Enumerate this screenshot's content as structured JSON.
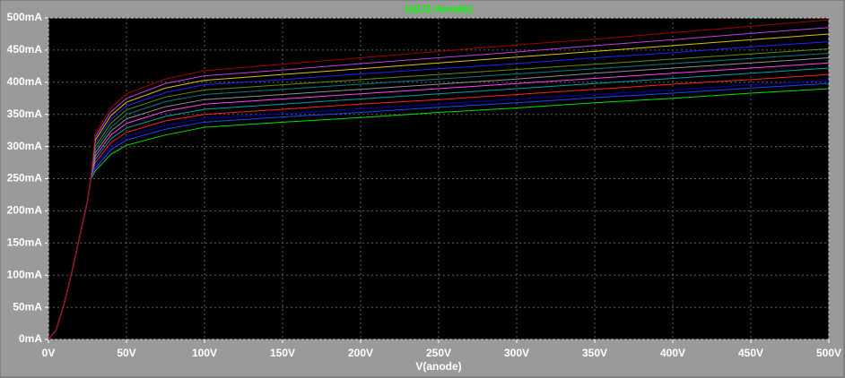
{
  "chart_data": {
    "type": "line",
    "title": "Ix(U1:Anode)",
    "title_color": "#00ff00",
    "x_label": "V(anode)",
    "x": [
      0,
      5,
      10,
      15,
      20,
      25,
      27,
      30,
      40,
      50,
      75,
      100,
      150,
      200,
      250,
      300,
      350,
      400,
      450,
      500
    ],
    "xlim": [
      0,
      500
    ],
    "xticks": [
      {
        "value": 0,
        "label": "0V"
      },
      {
        "value": 50,
        "label": "50V"
      },
      {
        "value": 100,
        "label": "100V"
      },
      {
        "value": 150,
        "label": "150V"
      },
      {
        "value": 200,
        "label": "200V"
      },
      {
        "value": 250,
        "label": "250V"
      },
      {
        "value": 300,
        "label": "300V"
      },
      {
        "value": 350,
        "label": "350V"
      },
      {
        "value": 400,
        "label": "400V"
      },
      {
        "value": 450,
        "label": "450V"
      },
      {
        "value": 500,
        "label": "500V"
      }
    ],
    "ylim": [
      0,
      500
    ],
    "yticks": [
      {
        "value": 0,
        "label": "0mA"
      },
      {
        "value": 50,
        "label": "50mA"
      },
      {
        "value": 100,
        "label": "100mA"
      },
      {
        "value": 150,
        "label": "150mA"
      },
      {
        "value": 200,
        "label": "200mA"
      },
      {
        "value": 250,
        "label": "250mA"
      },
      {
        "value": 300,
        "label": "300mA"
      },
      {
        "value": 350,
        "label": "350mA"
      },
      {
        "value": 400,
        "label": "400mA"
      },
      {
        "value": 450,
        "label": "450mA"
      },
      {
        "value": 500,
        "label": "500mA"
      }
    ],
    "grid": true,
    "series": [
      {
        "color": "#00e000",
        "values": [
          0,
          15,
          55,
          105,
          160,
          215,
          248,
          262,
          288,
          302,
          318,
          330,
          338,
          345,
          353,
          360,
          368,
          375,
          383,
          390
        ]
      },
      {
        "color": "#2040ff",
        "values": [
          0,
          15,
          55,
          105,
          160,
          215,
          248,
          266,
          295,
          310,
          327,
          338,
          346,
          353,
          361,
          368,
          376,
          383,
          391,
          398
        ]
      },
      {
        "color": "#0000c0",
        "values": [
          0,
          15,
          55,
          105,
          160,
          215,
          248,
          270,
          300,
          316,
          333,
          344,
          351,
          359,
          366,
          374,
          381,
          388,
          396,
          403
        ]
      },
      {
        "color": "#ff2020",
        "values": [
          0,
          15,
          55,
          105,
          160,
          215,
          248,
          275,
          306,
          322,
          340,
          350,
          358,
          366,
          373,
          381,
          389,
          397,
          404,
          412
        ]
      },
      {
        "color": "#00a0a0",
        "values": [
          0,
          15,
          55,
          105,
          160,
          215,
          248,
          280,
          312,
          329,
          347,
          358,
          366,
          374,
          382,
          390,
          398,
          406,
          414,
          422
        ]
      },
      {
        "color": "#ff40ff",
        "values": [
          0,
          15,
          55,
          105,
          160,
          215,
          248,
          285,
          318,
          336,
          355,
          366,
          374,
          382,
          390,
          398,
          406,
          414,
          422,
          430
        ]
      },
      {
        "color": "#909090",
        "values": [
          0,
          15,
          55,
          105,
          160,
          215,
          248,
          290,
          324,
          343,
          362,
          373,
          381,
          389,
          397,
          405,
          414,
          422,
          430,
          438
        ]
      },
      {
        "color": "#008080",
        "values": [
          0,
          15,
          55,
          105,
          160,
          215,
          248,
          295,
          330,
          350,
          370,
          381,
          389,
          397,
          405,
          413,
          421,
          429,
          437,
          445
        ]
      },
      {
        "color": "#609000",
        "values": [
          0,
          15,
          55,
          105,
          160,
          215,
          248,
          300,
          336,
          357,
          377,
          388,
          396,
          404,
          412,
          420,
          428,
          436,
          444,
          452
        ]
      },
      {
        "color": "#2020ff",
        "values": [
          0,
          15,
          55,
          105,
          160,
          215,
          248,
          305,
          342,
          363,
          384,
          396,
          404,
          413,
          421,
          429,
          438,
          446,
          455,
          463
        ]
      },
      {
        "color": "#e0c000",
        "values": [
          0,
          15,
          55,
          105,
          160,
          215,
          248,
          310,
          348,
          369,
          391,
          403,
          412,
          421,
          430,
          439,
          448,
          457,
          466,
          475
        ]
      },
      {
        "color": "#c040e0",
        "values": [
          0,
          15,
          55,
          105,
          160,
          215,
          248,
          315,
          354,
          375,
          398,
          410,
          419,
          429,
          438,
          447,
          457,
          466,
          476,
          485
        ]
      },
      {
        "color": "#a00000",
        "values": [
          0,
          15,
          55,
          105,
          160,
          215,
          248,
          320,
          360,
          382,
          405,
          418,
          428,
          438,
          448,
          458,
          467,
          477,
          487,
          497
        ]
      }
    ]
  }
}
